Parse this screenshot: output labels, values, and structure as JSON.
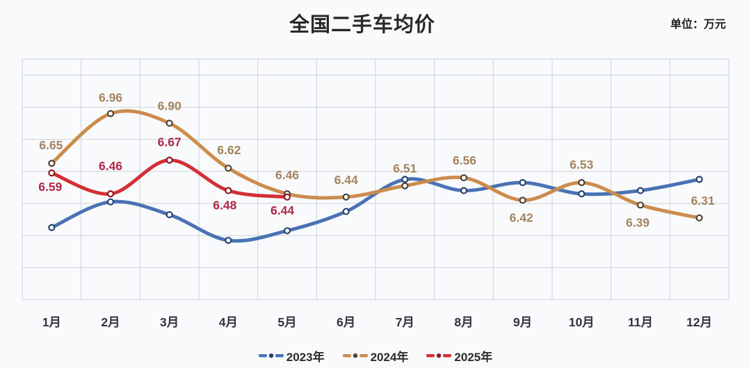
{
  "title": "全国二手车均价",
  "unit_label": "单位：万元",
  "chart_data": {
    "type": "line",
    "title": "全国二手车均价",
    "unit": "万元",
    "categories": [
      "1月",
      "2月",
      "3月",
      "4月",
      "5月",
      "6月",
      "7月",
      "8月",
      "9月",
      "10月",
      "11月",
      "12月"
    ],
    "series": [
      {
        "name": "2023年",
        "color": "#4a72b4",
        "marker_ring": "#26436f",
        "show_labels": false,
        "values": [
          6.25,
          6.41,
          6.33,
          6.17,
          6.23,
          6.35,
          6.55,
          6.48,
          6.53,
          6.46,
          6.48,
          6.55
        ]
      },
      {
        "name": "2024年",
        "color": "#cc8c4d",
        "marker_ring": "#4f4236",
        "label_color": "#a3835e",
        "show_labels": true,
        "values": [
          6.65,
          6.96,
          6.9,
          6.62,
          6.46,
          6.44,
          6.51,
          6.56,
          6.42,
          6.53,
          6.39,
          6.31
        ],
        "label_offsets": [
          [
            -1,
            -20
          ],
          [
            0,
            -17
          ],
          [
            0,
            -19
          ],
          [
            1,
            -20
          ],
          [
            0,
            -21
          ],
          [
            0,
            -19
          ],
          [
            0,
            -19
          ],
          [
            1,
            -19
          ],
          [
            -2,
            31
          ],
          [
            0,
            -20
          ],
          [
            -4,
            31
          ],
          [
            5,
            -19
          ]
        ]
      },
      {
        "name": "2025年",
        "color": "#d32f35",
        "marker_ring": "#8c1a26",
        "label_color": "#b02746",
        "show_labels": true,
        "values": [
          6.59,
          6.46,
          6.67,
          6.48,
          6.44,
          null,
          null,
          null,
          null,
          null,
          null,
          null
        ],
        "label_offsets": [
          [
            -2,
            26
          ],
          [
            0,
            -34
          ],
          [
            0,
            -20
          ],
          [
            -5,
            27
          ],
          [
            -7,
            25
          ]
        ]
      }
    ],
    "ylim": [
      5.8,
      7.3
    ],
    "grid_step": 0.2,
    "grid": true,
    "xlabel": "",
    "ylabel": "",
    "legend_position": "bottom-center",
    "axis_label_color": "#32323c",
    "grid_color": "#cdd2da"
  }
}
